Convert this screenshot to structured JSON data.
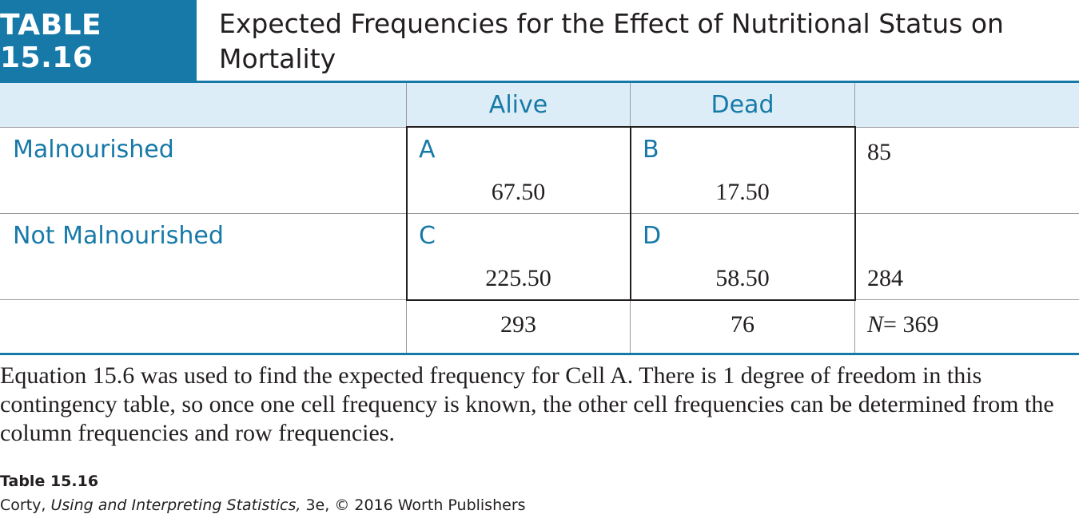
{
  "header": {
    "tag": "TABLE 15.16",
    "title": "Expected Frequencies for the Effect of Nutritional Status on Mortality"
  },
  "table": {
    "columns": [
      "Alive",
      "Dead",
      ""
    ],
    "rows": [
      {
        "label": "Malnourished",
        "cells": [
          {
            "letter": "A",
            "value": "67.50"
          },
          {
            "letter": "B",
            "value": "17.50"
          }
        ],
        "total": "85"
      },
      {
        "label": "Not Malnourished",
        "cells": [
          {
            "letter": "C",
            "value": "225.50"
          },
          {
            "letter": "D",
            "value": "58.50"
          }
        ],
        "total": "284"
      }
    ],
    "column_totals": [
      "293",
      "76"
    ],
    "grand_total": {
      "symbol": "N",
      "equals": "=",
      "value": "369"
    }
  },
  "caption": "Equation 15.6 was used to find the expected frequency for Cell A. There is 1 degree of freedom in this contingency table, so once one cell frequency is known, the other cell frequencies can be determined from the column frequencies and row frequencies.",
  "source": {
    "title": "Table 15.16",
    "author": "Corty,",
    "book": "Using and Interpreting Statistics,",
    "rest": "3e, © 2016 Worth Publishers"
  }
}
